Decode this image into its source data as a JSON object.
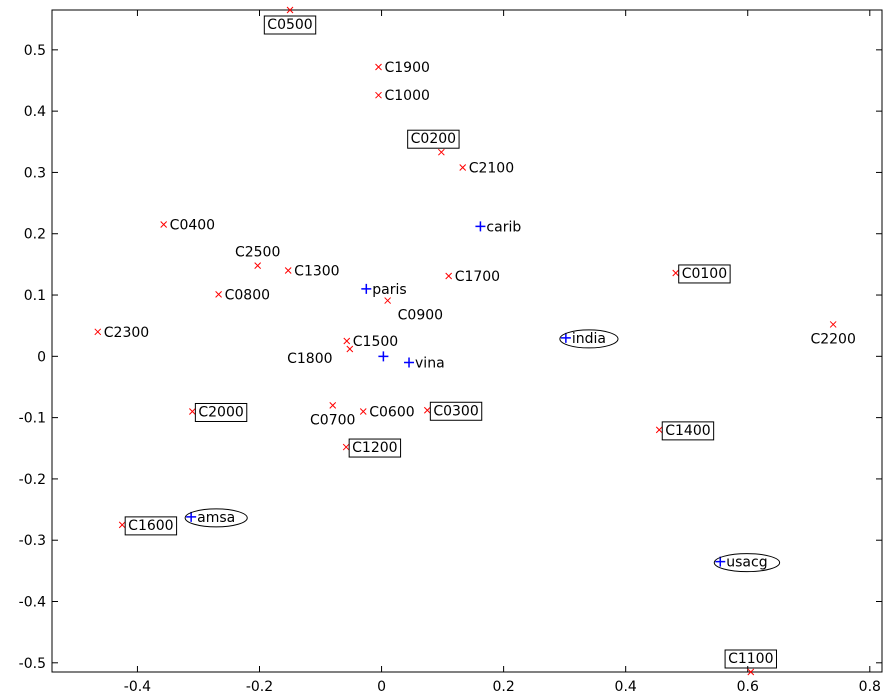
{
  "chart_data": {
    "type": "scatter",
    "xlim": [
      -0.54,
      0.82
    ],
    "ylim": [
      -0.515,
      0.565
    ],
    "x_ticks": [
      -0.4,
      -0.2,
      0,
      0.2,
      0.4,
      0.6,
      0.8
    ],
    "y_ticks": [
      -0.5,
      -0.4,
      -0.3,
      -0.2,
      -0.1,
      0,
      0.1,
      0.2,
      0.3,
      0.4,
      0.5
    ],
    "x_tick_labels": [
      "-0.4",
      "-0.2",
      "0",
      "0.2",
      "0.4",
      "0.6",
      "0.8"
    ],
    "y_tick_labels": [
      "-0.5",
      "-0.4",
      "-0.3",
      "-0.2",
      "-0.1",
      "0",
      "0.1",
      "0.2",
      "0.3",
      "0.4",
      "0.5"
    ],
    "grid": false,
    "marker_colors": {
      "x_marker": "#ff0000",
      "plus_marker": "#0000ff",
      "axes": "#000000"
    },
    "x_marker_points": [
      {
        "label": "C0500",
        "x": -0.15,
        "y": 0.565,
        "box": "rect",
        "label_pos": "below"
      },
      {
        "label": "C1900",
        "x": -0.005,
        "y": 0.472,
        "box": "none",
        "label_pos": "right"
      },
      {
        "label": "C1000",
        "x": -0.005,
        "y": 0.426,
        "box": "none",
        "label_pos": "right"
      },
      {
        "label": "C0200",
        "x": 0.098,
        "y": 0.333,
        "box": "rect",
        "label_pos": "above-left"
      },
      {
        "label": "C2100",
        "x": 0.133,
        "y": 0.308,
        "box": "none",
        "label_pos": "right"
      },
      {
        "label": "C0400",
        "x": -0.357,
        "y": 0.215,
        "box": "none",
        "label_pos": "right"
      },
      {
        "label": "C2500",
        "x": -0.203,
        "y": 0.148,
        "box": "none",
        "label_pos": "above"
      },
      {
        "label": "C1300",
        "x": -0.153,
        "y": 0.14,
        "box": "none",
        "label_pos": "right"
      },
      {
        "label": "C1700",
        "x": 0.11,
        "y": 0.131,
        "box": "none",
        "label_pos": "right"
      },
      {
        "label": "C0100",
        "x": 0.482,
        "y": 0.136,
        "box": "rect",
        "label_pos": "right"
      },
      {
        "label": "C0800",
        "x": -0.267,
        "y": 0.101,
        "box": "none",
        "label_pos": "right"
      },
      {
        "label": "C0900",
        "x": 0.01,
        "y": 0.091,
        "box": "none",
        "label_pos": "below-right"
      },
      {
        "label": "C2300",
        "x": -0.465,
        "y": 0.04,
        "box": "none",
        "label_pos": "right"
      },
      {
        "label": "C2200",
        "x": 0.74,
        "y": 0.052,
        "box": "none",
        "label_pos": "below"
      },
      {
        "label": "C1500",
        "x": -0.057,
        "y": 0.025,
        "box": "none",
        "label_pos": "right"
      },
      {
        "label": "C1800",
        "x": -0.052,
        "y": 0.012,
        "box": "none",
        "label_pos": "below-left"
      },
      {
        "label": "C2000",
        "x": -0.31,
        "y": -0.09,
        "box": "rect",
        "label_pos": "right"
      },
      {
        "label": "C0700",
        "x": -0.08,
        "y": -0.08,
        "box": "none",
        "label_pos": "below"
      },
      {
        "label": "C0600",
        "x": -0.03,
        "y": -0.09,
        "box": "none",
        "label_pos": "right"
      },
      {
        "label": "C0300",
        "x": 0.075,
        "y": -0.088,
        "box": "rect",
        "label_pos": "right"
      },
      {
        "label": "C1400",
        "x": 0.455,
        "y": -0.12,
        "box": "rect",
        "label_pos": "right"
      },
      {
        "label": "C1200",
        "x": -0.058,
        "y": -0.148,
        "box": "rect",
        "label_pos": "right"
      },
      {
        "label": "C1600",
        "x": -0.425,
        "y": -0.275,
        "box": "rect",
        "label_pos": "right"
      },
      {
        "label": "C1100",
        "x": 0.605,
        "y": -0.515,
        "box": "rect",
        "label_pos": "above"
      }
    ],
    "plus_marker_points": [
      {
        "label": "carib",
        "x": 0.162,
        "y": 0.212,
        "box": "none",
        "label_pos": "right"
      },
      {
        "label": "paris",
        "x": -0.025,
        "y": 0.11,
        "box": "none",
        "label_pos": "right"
      },
      {
        "label": "",
        "x": 0.003,
        "y": 0.0,
        "box": "none",
        "label_pos": "right"
      },
      {
        "label": "vina",
        "x": 0.045,
        "y": -0.01,
        "box": "none",
        "label_pos": "right"
      },
      {
        "label": "india",
        "x": 0.302,
        "y": 0.03,
        "box": "ellipse",
        "label_pos": "right"
      },
      {
        "label": "amsa",
        "x": -0.312,
        "y": -0.262,
        "box": "ellipse",
        "label_pos": "right"
      },
      {
        "label": "usacg",
        "x": 0.555,
        "y": -0.335,
        "box": "ellipse",
        "label_pos": "right"
      }
    ]
  }
}
